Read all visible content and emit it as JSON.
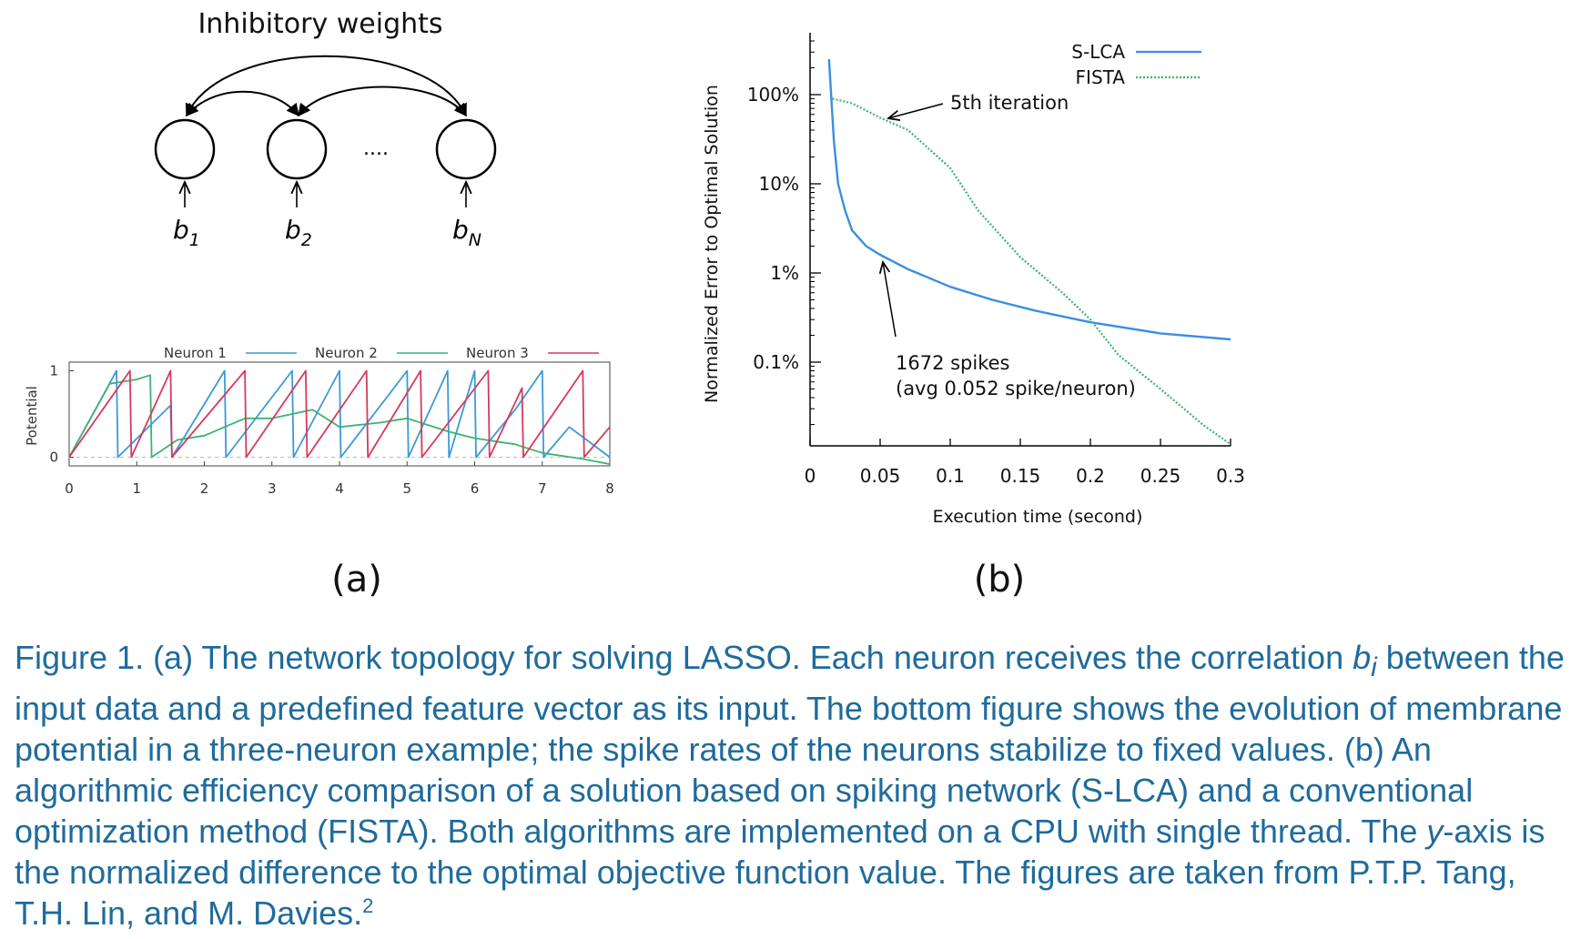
{
  "panel_a": {
    "diagram": {
      "title": "Inhibitory weights",
      "inputs": [
        {
          "base": "b",
          "sub": "1"
        },
        {
          "base": "b",
          "sub": "2"
        },
        {
          "base": "b",
          "sub": "N"
        }
      ],
      "ellipsis": "...."
    },
    "panel_label": "(a)"
  },
  "panel_b": {
    "panel_label": "(b)",
    "annotations": {
      "fifth_iteration": "5th iteration",
      "spikes_line1": "1672 spikes",
      "spikes_line2": "(avg 0.052 spike/neuron)"
    }
  },
  "chart_data": [
    {
      "type": "line",
      "panel": "a",
      "title": "",
      "xlabel": "",
      "ylabel": "Potential",
      "xlim": [
        0,
        8
      ],
      "ylim": [
        -0.1,
        1.1
      ],
      "x_ticks": [
        "0",
        "1",
        "2",
        "3",
        "4",
        "5",
        "6",
        "7",
        "8"
      ],
      "y_ticks": [
        "0",
        "1"
      ],
      "legend_position": "top",
      "series": [
        {
          "name": "Neuron 1",
          "color": "#3a9ad9",
          "points": [
            [
              0,
              0
            ],
            [
              0.7,
              1
            ],
            [
              0.72,
              0
            ],
            [
              1.5,
              0.6
            ],
            [
              1.52,
              0
            ],
            [
              2.3,
              1
            ],
            [
              2.32,
              0
            ],
            [
              3.3,
              1
            ],
            [
              3.32,
              0
            ],
            [
              4.0,
              1
            ],
            [
              4.02,
              0
            ],
            [
              5.0,
              1
            ],
            [
              5.02,
              0
            ],
            [
              5.6,
              1
            ],
            [
              5.62,
              0
            ],
            [
              6.0,
              1
            ],
            [
              6.02,
              0
            ],
            [
              6.6,
              0.55
            ],
            [
              7.0,
              1
            ],
            [
              7.02,
              0
            ],
            [
              7.4,
              0.35
            ],
            [
              8,
              0
            ]
          ]
        },
        {
          "name": "Neuron 2",
          "color": "#3cb371",
          "points": [
            [
              0,
              0
            ],
            [
              0.6,
              0.85
            ],
            [
              1.0,
              0.9
            ],
            [
              1.2,
              0.95
            ],
            [
              1.22,
              0
            ],
            [
              1.6,
              0.2
            ],
            [
              2.0,
              0.25
            ],
            [
              2.6,
              0.45
            ],
            [
              3.0,
              0.45
            ],
            [
              3.6,
              0.55
            ],
            [
              4.0,
              0.35
            ],
            [
              4.6,
              0.4
            ],
            [
              5.0,
              0.45
            ],
            [
              5.6,
              0.3
            ],
            [
              6.0,
              0.22
            ],
            [
              6.6,
              0.15
            ],
            [
              7.0,
              0.05
            ],
            [
              7.6,
              -0.02
            ],
            [
              8,
              -0.08
            ]
          ]
        },
        {
          "name": "Neuron 3",
          "color": "#d63a5c",
          "points": [
            [
              0,
              0
            ],
            [
              0.9,
              1
            ],
            [
              0.92,
              0
            ],
            [
              1.5,
              1
            ],
            [
              1.52,
              0
            ],
            [
              2.6,
              1
            ],
            [
              2.62,
              0
            ],
            [
              3.5,
              1
            ],
            [
              3.52,
              0
            ],
            [
              4.4,
              1
            ],
            [
              4.42,
              0
            ],
            [
              5.2,
              1
            ],
            [
              5.22,
              0
            ],
            [
              6.2,
              1
            ],
            [
              6.22,
              0
            ],
            [
              6.7,
              0.8
            ],
            [
              6.72,
              0
            ],
            [
              7.6,
              1
            ],
            [
              7.62,
              0
            ],
            [
              8,
              0.35
            ]
          ]
        }
      ]
    },
    {
      "type": "line",
      "panel": "b",
      "title": "",
      "xlabel": "Execution time (second)",
      "ylabel": "Normalized Error to Optimal Solution",
      "xlim": [
        0,
        0.3
      ],
      "y_scale": "log",
      "ylim_percent": [
        0.01,
        500
      ],
      "x_ticks": [
        "0",
        "0.05",
        "0.1",
        "0.15",
        "0.2",
        "0.25",
        "0.3"
      ],
      "y_ticks": [
        {
          "value": 100,
          "label": "100%"
        },
        {
          "value": 10,
          "label": "10%"
        },
        {
          "value": 1,
          "label": "1%"
        },
        {
          "value": 0.1,
          "label": "0.1%"
        }
      ],
      "legend_position": "top-right",
      "series": [
        {
          "name": "S-LCA",
          "color": "#3a8fe0",
          "style": "solid",
          "points": [
            [
              0.0135,
              250
            ],
            [
              0.017,
              30
            ],
            [
              0.02,
              10
            ],
            [
              0.025,
              5
            ],
            [
              0.03,
              3
            ],
            [
              0.04,
              2
            ],
            [
              0.05,
              1.6
            ],
            [
              0.07,
              1.1
            ],
            [
              0.1,
              0.7
            ],
            [
              0.13,
              0.5
            ],
            [
              0.16,
              0.38
            ],
            [
              0.2,
              0.28
            ],
            [
              0.25,
              0.21
            ],
            [
              0.3,
              0.18
            ]
          ]
        },
        {
          "name": "FISTA",
          "color": "#3cb371",
          "style": "dotted",
          "points": [
            [
              0.016,
              90
            ],
            [
              0.03,
              80
            ],
            [
              0.05,
              55
            ],
            [
              0.07,
              40
            ],
            [
              0.1,
              15
            ],
            [
              0.12,
              5
            ],
            [
              0.15,
              1.5
            ],
            [
              0.18,
              0.6
            ],
            [
              0.2,
              0.3
            ],
            [
              0.22,
              0.12
            ],
            [
              0.25,
              0.05
            ],
            [
              0.28,
              0.02
            ],
            [
              0.3,
              0.012
            ]
          ]
        }
      ]
    }
  ],
  "caption": {
    "seg1": "Figure 1. (a) The network topology for solving LASSO. Each neuron receives the correlation ",
    "b_var": "b",
    "b_sub": "i",
    "seg2": " between the input data and a predefined feature vector as its input. The bottom figure shows the evolution of membrane potential in a three-neuron example; the spike rates of the neurons stabilize to fixed values. (b) An algorithmic efficiency comparison of a solution based on spiking network (S-LCA) and a conventional optimization method (FISTA). Both algorithms are implemented on a CPU with single thread. The ",
    "y_var": "y",
    "seg3": "-axis is the normalized difference to the optimal objective function value. The figures are taken from P.T.P. Tang, T.H. Lin, and M. Davies.",
    "footnote": "2"
  }
}
